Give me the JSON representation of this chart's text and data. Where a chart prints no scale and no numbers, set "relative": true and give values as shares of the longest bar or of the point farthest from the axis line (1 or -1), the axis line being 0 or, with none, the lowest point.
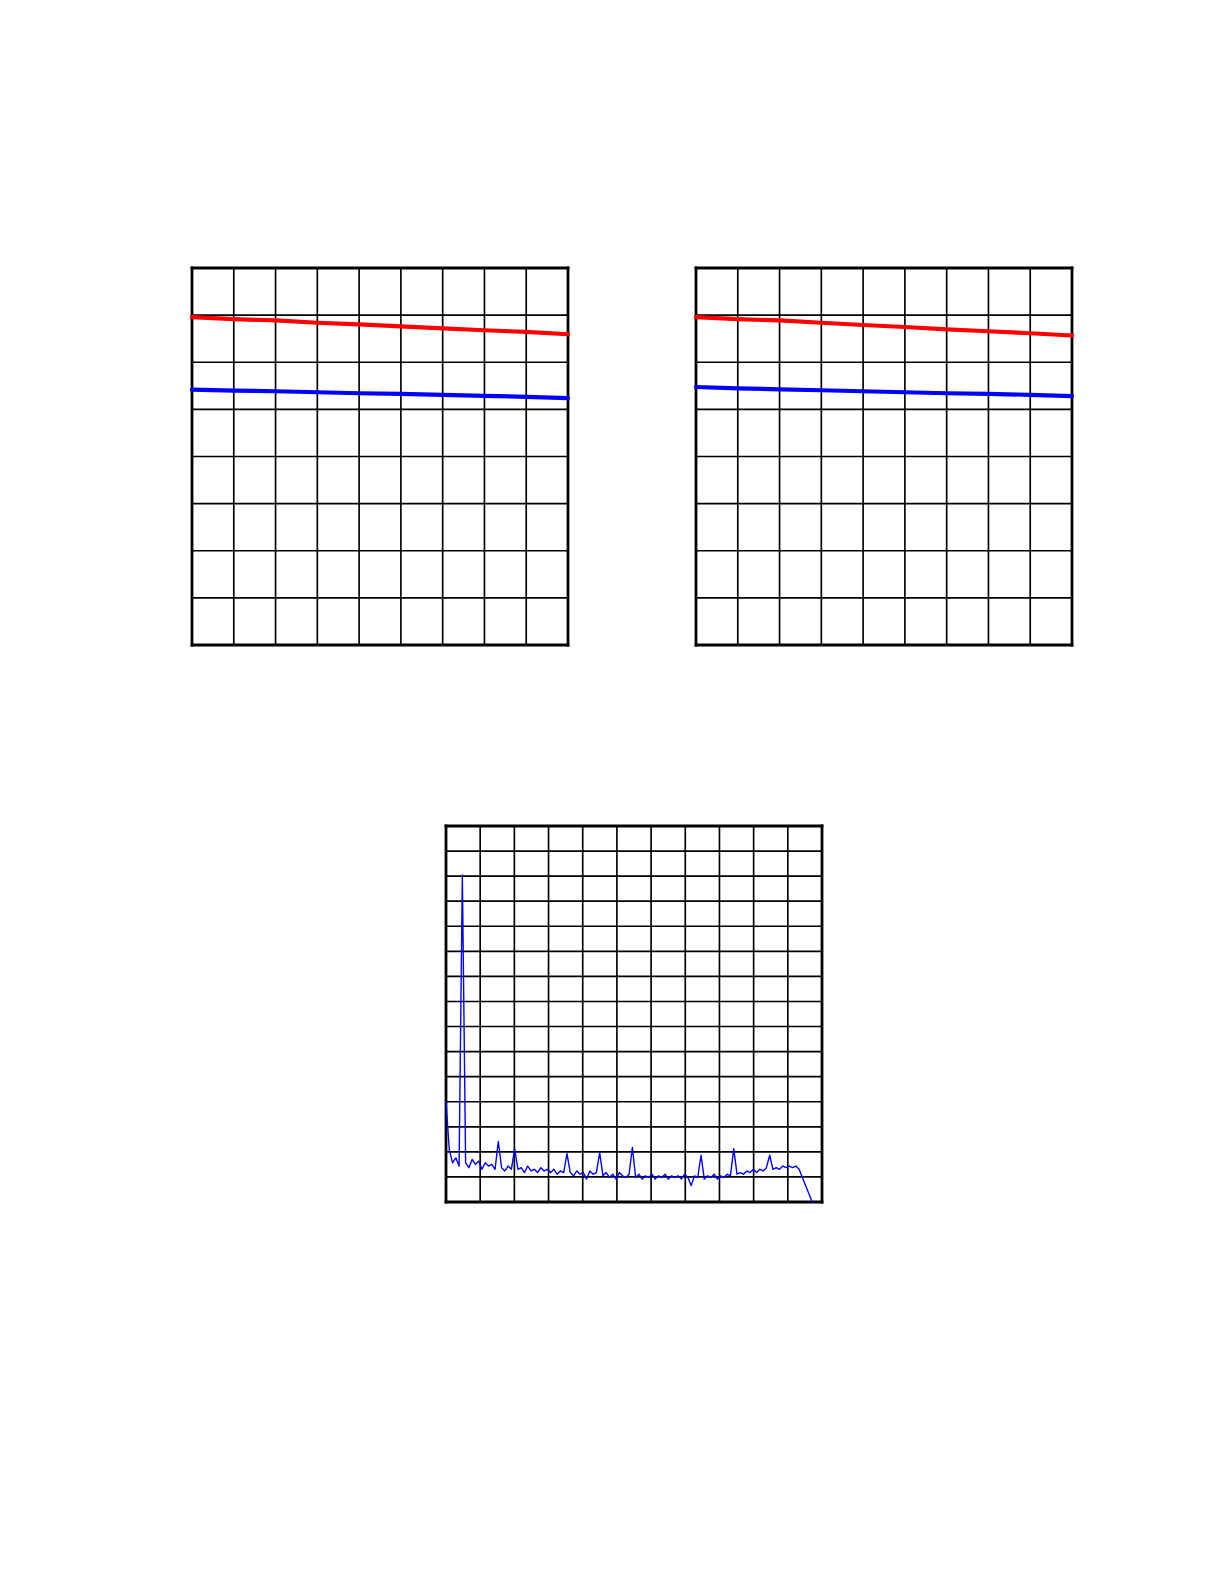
{
  "chart_data": [
    {
      "type": "line",
      "relative": true,
      "grid": true,
      "tick_labels": false,
      "categories": [
        null,
        null,
        null,
        null,
        null,
        null,
        null,
        null,
        null,
        null
      ],
      "series": [
        {
          "color": "#ff0000",
          "values": [
            1,
            0.994,
            0.99,
            0.983,
            0.978,
            0.972,
            0.966,
            0.96,
            0.955,
            0.948
          ]
        },
        {
          "color": "#0000ff",
          "values": [
            0.779,
            0.776,
            0.774,
            0.771,
            0.768,
            0.766,
            0.763,
            0.76,
            0.757,
            0.753
          ]
        }
      ]
    },
    {
      "type": "line",
      "relative": true,
      "grid": true,
      "tick_labels": false,
      "categories": [
        null,
        null,
        null,
        null,
        null,
        null,
        null,
        null,
        null,
        null
      ],
      "series": [
        {
          "color": "#ff0000",
          "values": [
            1,
            0.994,
            0.99,
            0.983,
            0.976,
            0.97,
            0.963,
            0.957,
            0.951,
            0.944
          ]
        },
        {
          "color": "#0000ff",
          "values": [
            0.787,
            0.783,
            0.78,
            0.777,
            0.774,
            0.771,
            0.768,
            0.766,
            0.763,
            0.759
          ]
        }
      ]
    },
    {
      "type": "line",
      "relative": true,
      "grid": true,
      "tick_labels": false,
      "categories": [
        null,
        null,
        null,
        null,
        null,
        null,
        null,
        null,
        null,
        null,
        null,
        null,
        null,
        null,
        null,
        null,
        null,
        null,
        null,
        null,
        null,
        null,
        null,
        null,
        null,
        null,
        null,
        null,
        null,
        null,
        null,
        null,
        null,
        null,
        null,
        null,
        null,
        null,
        null,
        null,
        null,
        null,
        null,
        null,
        null,
        null,
        null,
        null,
        null,
        null,
        null,
        null,
        null,
        null,
        null,
        null,
        null,
        null,
        null,
        null,
        null,
        null,
        null,
        null,
        null,
        null,
        null,
        null,
        null,
        null,
        null,
        null,
        null,
        null,
        null,
        null,
        null,
        null,
        null,
        null,
        null,
        null,
        null,
        null,
        null,
        null,
        null,
        null,
        null,
        null,
        null,
        null,
        null,
        null,
        null,
        null,
        null,
        null,
        null,
        null,
        null,
        null,
        null,
        null,
        null,
        null,
        null,
        null,
        null,
        null,
        null,
        null,
        null,
        null,
        null,
        null
      ],
      "series": [
        {
          "color": "#0000ff",
          "values": [
            0.307,
            0.16,
            0.12,
            0.135,
            0.11,
            1,
            0.12,
            0.105,
            0.13,
            0.115,
            0.125,
            0.1,
            0.12,
            0.11,
            0.115,
            0.1,
            0.185,
            0.105,
            0.095,
            0.11,
            0.1,
            0.163,
            0.1,
            0.105,
            0.09,
            0.11,
            0.095,
            0.1,
            0.09,
            0.105,
            0.095,
            0.1,
            0.09,
            0.1,
            0.085,
            0.095,
            0.09,
            0.148,
            0.09,
            0.08,
            0.095,
            0.085,
            0.09,
            0.07,
            0.095,
            0.085,
            0.09,
            0.151,
            0.08,
            0.09,
            0.075,
            0.085,
            0.07,
            0.09,
            0.08,
            0.075,
            0.085,
            0.167,
            0.075,
            0.085,
            0.07,
            0.08,
            0.075,
            0.085,
            0.07,
            0.08,
            0.075,
            0.085,
            0.07,
            0.08,
            0.075,
            0.08,
            0.07,
            0.085,
            0.075,
            0.05,
            0.08,
            0.075,
            0.143,
            0.07,
            0.08,
            0.075,
            0.085,
            0.07,
            0.08,
            0.075,
            0.085,
            0.08,
            0.163,
            0.085,
            0.09,
            0.085,
            0.095,
            0.09,
            0.1,
            0.09,
            0.1,
            0.095,
            0.105,
            0.143,
            0.1,
            0.105,
            0.1,
            0.11,
            0.105,
            0.11,
            0.105,
            0.11,
            0.1,
            0.075,
            0.05,
            0.025,
            0,
            null,
            null,
            null
          ]
        }
      ]
    }
  ]
}
